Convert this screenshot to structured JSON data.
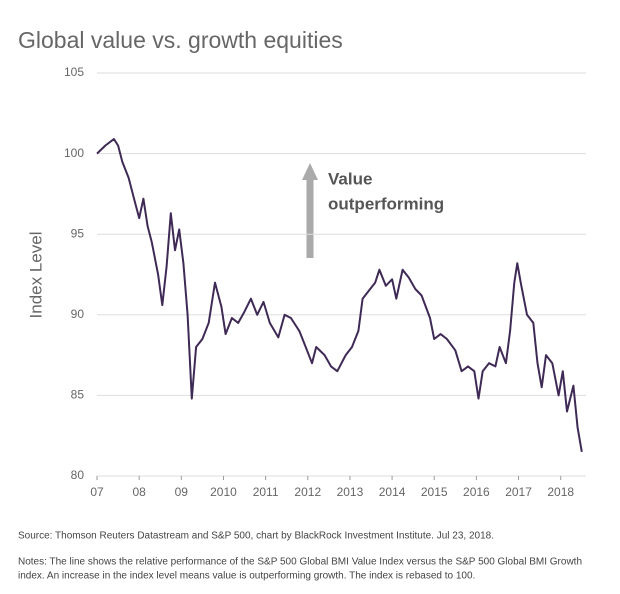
{
  "chart_data": {
    "type": "line",
    "title": "Global value vs. growth equities",
    "y_label": "Index Level",
    "annotation": [
      "Value",
      "outperforming"
    ],
    "source": "Source: Thomson Reuters Datastream and S&P 500, chart by BlackRock Investment Institute. Jul 23, 2018.",
    "notes": [
      "Notes: The line shows the relative performance of the S&P 500 Global BMI Value Index versus the S&P 500 Global BMI Growth",
      "index. An increase in the index level means value is outperforming growth. The index is rebased to 100."
    ],
    "x": [
      2007.0,
      2007.2,
      2007.4,
      2007.5,
      2007.6,
      2007.75,
      2007.9,
      2008.0,
      2008.1,
      2008.2,
      2008.3,
      2008.45,
      2008.55,
      2008.65,
      2008.75,
      2008.85,
      2008.95,
      2009.05,
      2009.15,
      2009.25,
      2009.35,
      2009.5,
      2009.65,
      2009.8,
      2009.95,
      2010.05,
      2010.2,
      2010.35,
      2010.5,
      2010.65,
      2010.8,
      2010.95,
      2011.1,
      2011.3,
      2011.45,
      2011.6,
      2011.8,
      2011.95,
      2012.1,
      2012.2,
      2012.4,
      2012.55,
      2012.7,
      2012.9,
      2013.05,
      2013.2,
      2013.3,
      2013.45,
      2013.6,
      2013.7,
      2013.85,
      2014.0,
      2014.1,
      2014.25,
      2014.4,
      2014.55,
      2014.7,
      2014.9,
      2015.0,
      2015.15,
      2015.3,
      2015.5,
      2015.65,
      2015.8,
      2015.95,
      2016.05,
      2016.15,
      2016.3,
      2016.45,
      2016.55,
      2016.7,
      2016.8,
      2016.9,
      2016.97,
      2017.05,
      2017.2,
      2017.35,
      2017.45,
      2017.55,
      2017.65,
      2017.8,
      2017.95,
      2018.05,
      2018.15,
      2018.3,
      2018.4,
      2018.5
    ],
    "series": [
      {
        "name": "Index Level",
        "color": "#3f2a56",
        "values": [
          100,
          100.5,
          100.9,
          100.5,
          99.5,
          98.5,
          97,
          96,
          97.2,
          95.5,
          94.5,
          92.5,
          90.6,
          93,
          96.3,
          94,
          95.3,
          93.2,
          90,
          84.8,
          88,
          88.5,
          89.5,
          92,
          90.5,
          88.8,
          89.8,
          89.5,
          90.2,
          91,
          90,
          90.8,
          89.5,
          88.6,
          90,
          89.8,
          89,
          88,
          87,
          88,
          87.5,
          86.8,
          86.5,
          87.5,
          88,
          89,
          91,
          91.5,
          92,
          92.8,
          91.8,
          92.2,
          91,
          92.8,
          92.3,
          91.6,
          91.2,
          89.8,
          88.5,
          88.8,
          88.5,
          87.8,
          86.5,
          86.8,
          86.5,
          84.8,
          86.5,
          87,
          86.8,
          88,
          87,
          89,
          92,
          93.2,
          92,
          90,
          89.5,
          87,
          85.5,
          87.5,
          87,
          85,
          86.5,
          84,
          85.6,
          83,
          81.5
        ]
      }
    ],
    "xlim": [
      2007,
      2018.6
    ],
    "xticks": [
      {
        "value": 2007,
        "label": "07"
      },
      {
        "value": 2008,
        "label": "08"
      },
      {
        "value": 2009,
        "label": "09"
      },
      2010,
      2011,
      2012,
      2013,
      2014,
      2015,
      2016,
      2017,
      2018
    ],
    "ylim": [
      80,
      105
    ],
    "yticks": [
      80,
      85,
      90,
      95,
      100,
      105
    ],
    "grid": true
  }
}
